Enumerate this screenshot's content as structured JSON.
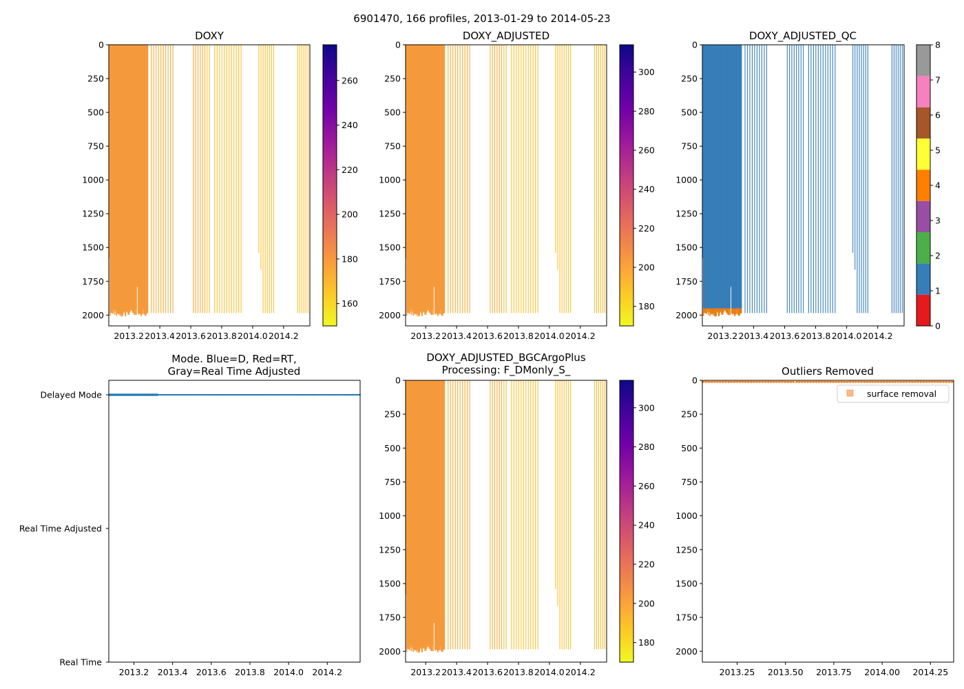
{
  "figure": {
    "suptitle": "6901470, 166 profiles, 2013-01-29 to 2014-05-23"
  },
  "colors": {
    "plasma": [
      "#f0f921",
      "#fdca26",
      "#fb9f3a",
      "#ed7953",
      "#d8576b",
      "#bd3786",
      "#9c179e",
      "#7201a8",
      "#46039f",
      "#0d0887"
    ],
    "qc": [
      "#e41a1c",
      "#377eb8",
      "#4daf4a",
      "#984ea3",
      "#ff7f00",
      "#ffff33",
      "#a65628",
      "#f781bf",
      "#999999"
    ],
    "profile": "#f59a3c",
    "delayed": "#1f77b4",
    "outlier": "#f47f20",
    "outlier_legend": "#f9b98b"
  },
  "chart_data": [
    {
      "id": "doxy",
      "type": "heatmap",
      "title": "DOXY",
      "xlim": [
        2013.07,
        2014.37
      ],
      "xticks": [
        2013.2,
        2013.4,
        2013.6,
        2013.8,
        2014.0,
        2014.2
      ],
      "ylim": [
        0,
        2080
      ],
      "yticks": [
        0,
        250,
        500,
        750,
        1000,
        1250,
        1500,
        1750,
        2000
      ],
      "colorbar": {
        "min": 150,
        "max": 276,
        "ticks": [
          160,
          180,
          200,
          220,
          240,
          260
        ]
      }
    },
    {
      "id": "doxy_adj",
      "type": "heatmap",
      "title": "DOXY_ADJUSTED",
      "xlim": [
        2013.07,
        2014.37
      ],
      "xticks": [
        2013.2,
        2013.4,
        2013.6,
        2013.8,
        2014.0,
        2014.2
      ],
      "ylim": [
        0,
        2080
      ],
      "yticks": [
        0,
        250,
        500,
        750,
        1000,
        1250,
        1500,
        1750,
        2000
      ],
      "colorbar": {
        "min": 170,
        "max": 314,
        "ticks": [
          180,
          200,
          220,
          240,
          260,
          280,
          300
        ]
      }
    },
    {
      "id": "doxy_qc",
      "type": "heatmap",
      "title": "DOXY_ADJUSTED_QC",
      "xlim": [
        2013.07,
        2014.37
      ],
      "xticks": [
        2013.2,
        2013.4,
        2013.6,
        2013.8,
        2014.0,
        2014.2
      ],
      "ylim": [
        0,
        2080
      ],
      "yticks": [
        0,
        250,
        500,
        750,
        1000,
        1250,
        1500,
        1750,
        2000
      ],
      "colorbar": {
        "min": 0,
        "max": 8,
        "ticks": [
          0,
          1,
          2,
          3,
          4,
          5,
          6,
          7,
          8
        ],
        "discrete": true
      },
      "dominant_flag": 1
    },
    {
      "id": "mode",
      "type": "scatter",
      "title": "Mode. Blue=D, Red=RT,\nGray=Real Time Adjusted",
      "xlim": [
        2013.07,
        2014.37
      ],
      "xticks": [
        2013.2,
        2013.4,
        2013.6,
        2013.8,
        2014.0,
        2014.2
      ],
      "ycategories": [
        "Real Time",
        "Real Time Adjusted",
        "Delayed Mode"
      ],
      "series": [
        {
          "name": "Delayed Mode",
          "category": "Delayed Mode",
          "x_range": [
            2013.07,
            2014.37
          ]
        }
      ]
    },
    {
      "id": "bgc",
      "type": "heatmap",
      "title": "DOXY_ADJUSTED_BGCArgoPlus\nProcessing: F_DMonly_S_",
      "xlim": [
        2013.07,
        2014.37
      ],
      "xticks": [
        2013.2,
        2013.4,
        2013.6,
        2013.8,
        2014.0,
        2014.2
      ],
      "ylim": [
        0,
        2080
      ],
      "yticks": [
        0,
        250,
        500,
        750,
        1000,
        1250,
        1500,
        1750,
        2000
      ],
      "colorbar": {
        "min": 170,
        "max": 314,
        "ticks": [
          180,
          200,
          220,
          240,
          260,
          280,
          300
        ]
      }
    },
    {
      "id": "outliers",
      "type": "scatter",
      "title": "Outliers Removed",
      "xlim": [
        2013.07,
        2014.37
      ],
      "xticks": [
        2013.25,
        2013.5,
        2013.75,
        2014.0,
        2014.25
      ],
      "xticklabels": [
        "2013.25",
        "2013.50",
        "2013.75",
        "2014.00",
        "2014.25"
      ],
      "ylim": [
        0,
        2080
      ],
      "yticks": [
        0,
        250,
        500,
        750,
        1000,
        1250,
        1500,
        1750,
        2000
      ],
      "series": [
        {
          "name": "surface removal",
          "depth_range": [
            0,
            20
          ]
        }
      ],
      "legend": {
        "label": "surface removal",
        "position": "upper-right"
      }
    }
  ]
}
